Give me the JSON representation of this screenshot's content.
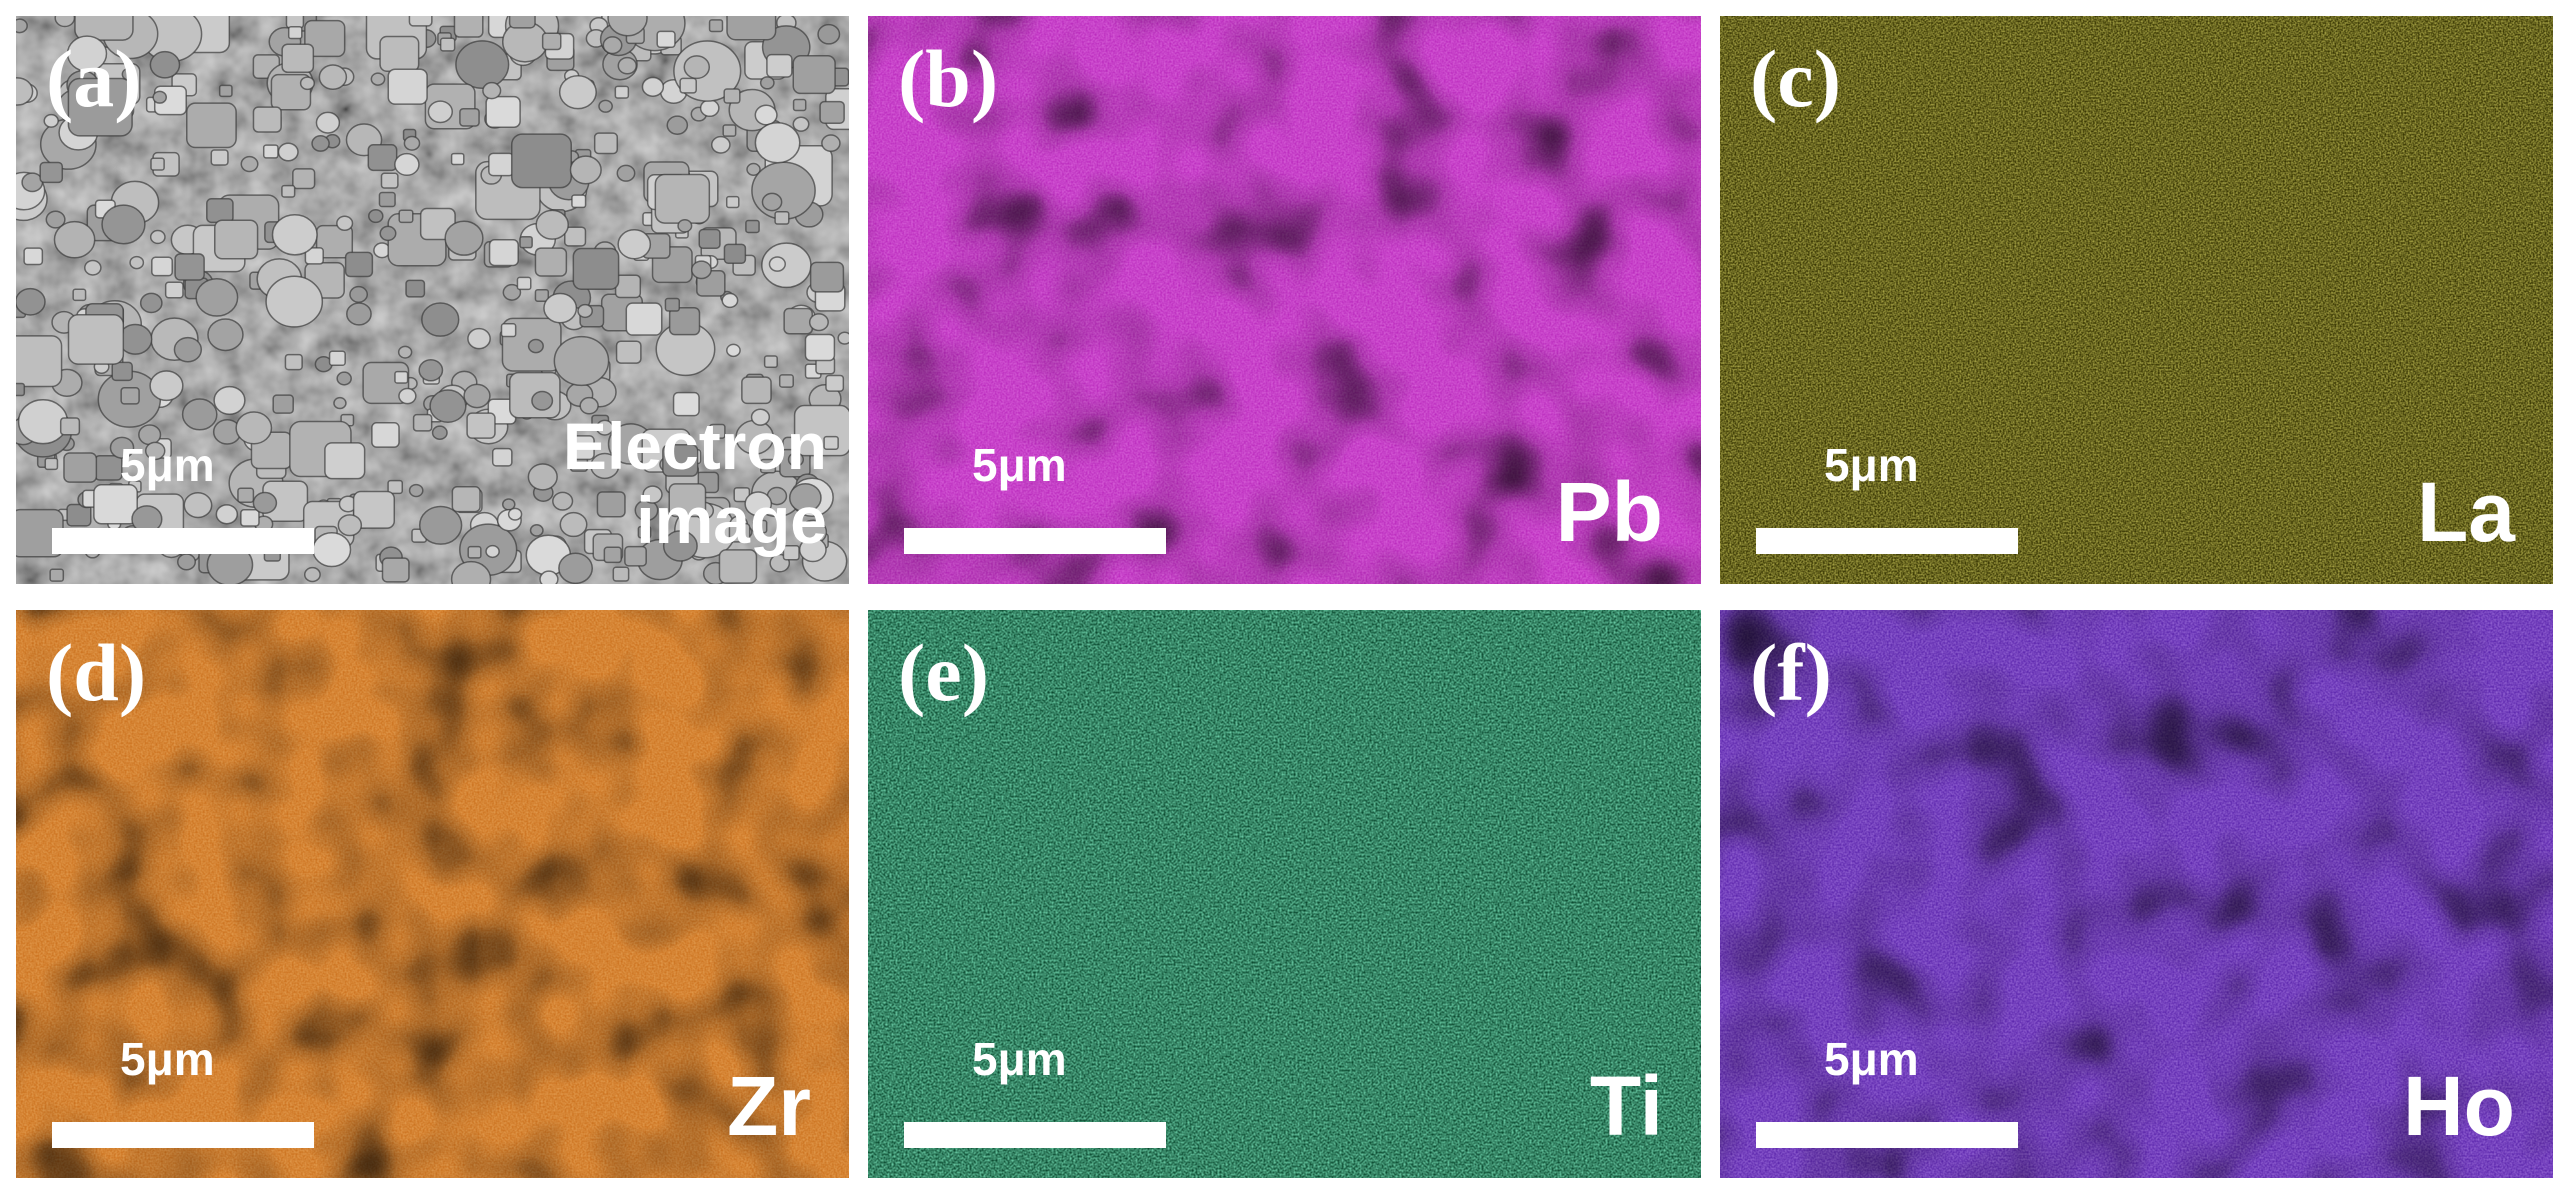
{
  "panels": [
    {
      "letter": "(a)",
      "scale": "5μm",
      "label_line1": "Electron",
      "label_line2": "image",
      "kind": "sem",
      "base": "#7a7a7a",
      "hot": "#d4d4d4"
    },
    {
      "letter": "(b)",
      "scale": "5μm",
      "label": "Pb",
      "kind": "map",
      "base": "#b21bb5",
      "hot": "#f25af2"
    },
    {
      "letter": "(c)",
      "scale": "5μm",
      "label": "La",
      "kind": "map",
      "base": "#6e6a08",
      "hot": "#e8e23a"
    },
    {
      "letter": "(d)",
      "scale": "5μm",
      "label": "Zr",
      "kind": "map",
      "base": "#c56510",
      "hot": "#f39a3c"
    },
    {
      "letter": "(e)",
      "scale": "5μm",
      "label": "Ti",
      "kind": "map",
      "base": "#127a4f",
      "hot": "#3fe29b"
    },
    {
      "letter": "(f)",
      "scale": "5μm",
      "label": "Ho",
      "kind": "map",
      "base": "#5216b0",
      "hot": "#9a5cf6"
    }
  ]
}
